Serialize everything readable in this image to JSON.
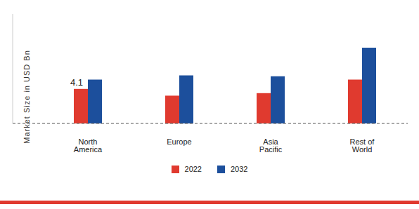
{
  "chart_data": {
    "type": "bar",
    "y_label": "Market Size in USD Bn",
    "categories": [
      "North America",
      "Europe",
      "Asia Pacific",
      "Rest of World"
    ],
    "series": [
      {
        "name": "2022",
        "color": "#e03a2f",
        "values": [
          4.1,
          3.3,
          3.6,
          5.2
        ],
        "value_labels": [
          "4.1",
          null,
          null,
          null
        ]
      },
      {
        "name": "2032",
        "color": "#1c4f9c",
        "values": [
          5.2,
          5.7,
          5.6,
          9.0
        ]
      }
    ],
    "ylim": [
      0,
      13
    ],
    "tick_labels": "x",
    "grid": false,
    "legend": "bottom"
  }
}
